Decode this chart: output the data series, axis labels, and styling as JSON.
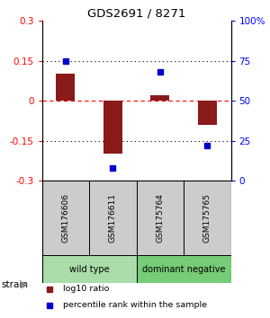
{
  "title": "GDS2691 / 8271",
  "samples": [
    "GSM176606",
    "GSM176611",
    "GSM175764",
    "GSM175765"
  ],
  "log10_ratio": [
    0.1,
    -0.2,
    0.02,
    -0.09
  ],
  "percentile_rank": [
    75,
    8,
    68,
    22
  ],
  "groups": [
    {
      "label": "wild type",
      "color": "#aaddaa",
      "start": 0,
      "end": 1
    },
    {
      "label": "dominant negative",
      "color": "#77cc77",
      "start": 2,
      "end": 3
    }
  ],
  "bar_color": "#8B1A1A",
  "dot_color": "#0000CC",
  "ylim_left": [
    -0.3,
    0.3
  ],
  "ylim_right": [
    0,
    100
  ],
  "yticks_left": [
    -0.3,
    -0.15,
    0,
    0.15,
    0.3
  ],
  "yticks_right": [
    0,
    25,
    50,
    75,
    100
  ],
  "ytick_labels_right": [
    "0",
    "25",
    "50",
    "75",
    "100%"
  ],
  "hlines": [
    0.15,
    0.0,
    -0.15
  ],
  "hline_colors": [
    "black",
    "red",
    "black"
  ],
  "hline_styles": [
    "dotted",
    "dashed",
    "dotted"
  ],
  "sample_box_color": "#cccccc",
  "strain_label": "strain",
  "legend_items": [
    {
      "color": "#8B1A1A",
      "label": "log10 ratio"
    },
    {
      "color": "#0000CC",
      "label": "percentile rank within the sample"
    }
  ],
  "bar_width": 0.4
}
